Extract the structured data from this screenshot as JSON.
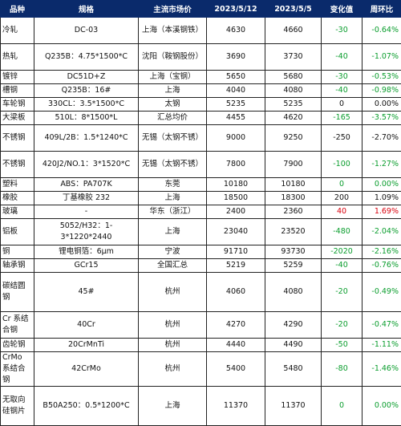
{
  "headers": [
    "品种",
    "规格",
    "主流市场价",
    "2023/5/12",
    "2023/5/5",
    "变化值",
    "周环比"
  ],
  "rows": [
    {
      "name": "冷轧",
      "spec": "DC-03",
      "market": "上海（本溪钢铁）",
      "cur": "4630",
      "prev": "4660",
      "chg": "-30",
      "wow": "-0.64%",
      "trend": "neg",
      "h": 33
    },
    {
      "name": "热轧",
      "spec": "Q235B：4.75*1500*C",
      "market": "沈阳（鞍钢股份）",
      "cur": "3690",
      "prev": "3730",
      "chg": "-40",
      "wow": "-1.07%",
      "trend": "neg",
      "h": 33
    },
    {
      "name": "镀锌",
      "spec": "DC51D+Z",
      "market": "上海（宝钢）",
      "cur": "5650",
      "prev": "5680",
      "chg": "-30",
      "wow": "-0.53%",
      "trend": "neg",
      "h": 17
    },
    {
      "name": "槽钢",
      "spec": "Q235B：16#",
      "market": "上海",
      "cur": "4040",
      "prev": "4080",
      "chg": "-40",
      "wow": "-0.98%",
      "trend": "neg",
      "h": 17
    },
    {
      "name": "车轮钢",
      "spec": "330CL：3.5*1500*C",
      "market": "太钢",
      "cur": "5235",
      "prev": "5235",
      "chg": "0",
      "wow": "0.00%",
      "trend": "neu",
      "h": 17
    },
    {
      "name": "大梁板",
      "spec": "510L：8*1500*L",
      "market": "汇总均价",
      "cur": "4455",
      "prev": "4620",
      "chg": "-165",
      "wow": "-3.57%",
      "trend": "neg",
      "h": 17
    },
    {
      "name": "不锈钢",
      "spec": "409L/2B：1.5*1240*C",
      "market": "无锡（太钢不锈）",
      "cur": "9000",
      "prev": "9250",
      "chg": "-250",
      "wow": "-2.70%",
      "trend": "neu",
      "h": 33
    },
    {
      "name": "不锈钢",
      "spec": "420J2/NO.1：3*1520*C",
      "market": "无锡（太钢不锈）",
      "cur": "7800",
      "prev": "7900",
      "chg": "-100",
      "wow": "-1.27%",
      "trend": "neg",
      "h": 33
    },
    {
      "name": "塑料",
      "spec": "ABS：PA707K",
      "market": "东莞",
      "cur": "10180",
      "prev": "10180",
      "chg": "0",
      "wow": "0.00%",
      "trend": "neg",
      "h": 17
    },
    {
      "name": "橡胶",
      "spec": "丁基橡胶 232",
      "market": "上海",
      "cur": "18500",
      "prev": "18300",
      "chg": "200",
      "wow": "1.09%",
      "trend": "neu",
      "h": 17
    },
    {
      "name": "玻璃",
      "spec": "-",
      "market": "华东（浙江）",
      "cur": "2400",
      "prev": "2360",
      "chg": "40",
      "wow": "1.69%",
      "trend": "pos",
      "h": 17
    },
    {
      "name": "铝板",
      "spec": "5052/H32：1-3*1220*2440",
      "market": "上海",
      "cur": "23040",
      "prev": "23520",
      "chg": "-480",
      "wow": "-2.04%",
      "trend": "neg",
      "h": 33
    },
    {
      "name": "铜",
      "spec": "锂电铜箔：6μm",
      "market": "宁波",
      "cur": "91710",
      "prev": "93730",
      "chg": "-2020",
      "wow": "-2.16%",
      "trend": "neg",
      "h": 17
    },
    {
      "name": "轴承钢",
      "spec": "GCr15",
      "market": "全国汇总",
      "cur": "5219",
      "prev": "5259",
      "chg": "-40",
      "wow": "-0.76%",
      "trend": "neg",
      "h": 17
    },
    {
      "name": "碳结圆钢",
      "spec": "45#",
      "market": "杭州",
      "cur": "4060",
      "prev": "4080",
      "chg": "-20",
      "wow": "-0.49%",
      "trend": "neg",
      "h": 49
    },
    {
      "name": "Cr 系结合钢",
      "spec": "40Cr",
      "market": "杭州",
      "cur": "4270",
      "prev": "4290",
      "chg": "-20",
      "wow": "-0.47%",
      "trend": "neg",
      "h": 33
    },
    {
      "name": "齿轮钢",
      "spec": "20CrMnTi",
      "market": "杭州",
      "cur": "4440",
      "prev": "4490",
      "chg": "-50",
      "wow": "-1.11%",
      "trend": "neg",
      "h": 17
    },
    {
      "name": "CrMo 系结合钢",
      "spec": "42CrMo",
      "market": "杭州",
      "cur": "5400",
      "prev": "5480",
      "chg": "-80",
      "wow": "-1.46%",
      "trend": "neg",
      "h": 33
    },
    {
      "name": "无取向硅钢片",
      "spec": "B50A250：0.5*1200*C",
      "market": "上海",
      "cur": "11370",
      "prev": "11370",
      "chg": "0",
      "wow": "0.00%",
      "trend": "neg",
      "h": 49
    }
  ]
}
